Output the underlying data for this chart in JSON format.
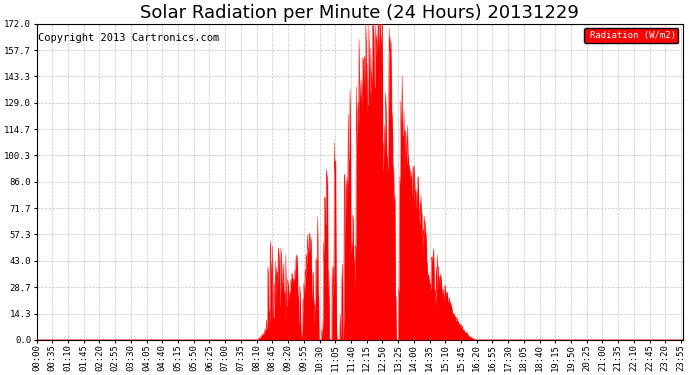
{
  "title": "Solar Radiation per Minute (24 Hours) 20131229",
  "copyright": "Copyright 2013 Cartronics.com",
  "legend_label": "Radiation (W/m2)",
  "y_ticks": [
    0.0,
    14.3,
    28.7,
    43.0,
    57.3,
    71.7,
    86.0,
    100.3,
    114.7,
    129.0,
    143.3,
    157.7,
    172.0
  ],
  "ylim": [
    0.0,
    172.0
  ],
  "fill_color": "#FF0000",
  "grid_color": "#AAAAAA",
  "bg_color": "#FFFFFF",
  "title_fontsize": 13,
  "copyright_fontsize": 7.5,
  "tick_fontsize": 6.5,
  "label_step_minutes": 35,
  "total_minutes": 1440,
  "sunrise_min": 490,
  "sunset_min": 982,
  "peak_min": 770,
  "peak_val": 172.0
}
